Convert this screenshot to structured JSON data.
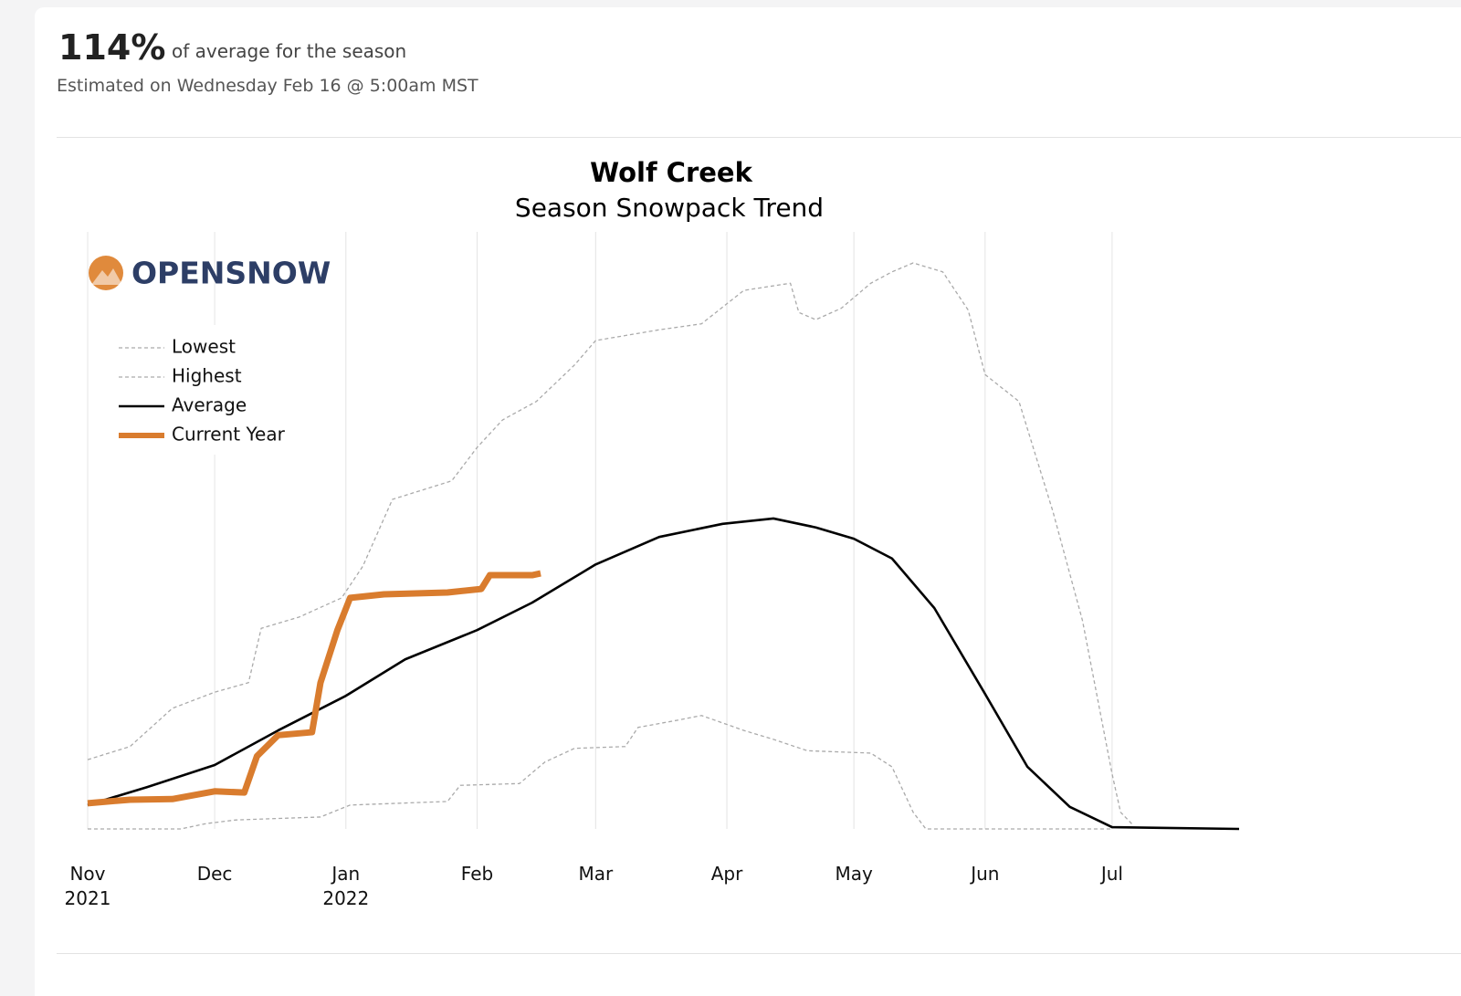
{
  "header": {
    "percent": "114%",
    "percent_caption": "of average for the season",
    "estimate": "Estimated on Wednesday Feb 16 @ 5:00am MST"
  },
  "logo": "OPENSNOW",
  "chart_data": {
    "type": "line",
    "title": "Wolf Creek",
    "subtitle": "Season Snowpack Trend",
    "xlim": [
      0,
      272
    ],
    "ylim": [
      0,
      100
    ],
    "xticks": [
      {
        "value": 0,
        "label": "Nov 2021"
      },
      {
        "value": 30,
        "label": "Dec"
      },
      {
        "value": 61,
        "label": "Jan 2022"
      },
      {
        "value": 92,
        "label": "Feb"
      },
      {
        "value": 120,
        "label": "Mar"
      },
      {
        "value": 151,
        "label": "Apr"
      },
      {
        "value": 181,
        "label": "May"
      },
      {
        "value": 212,
        "label": "Jun"
      },
      {
        "value": 242,
        "label": "Jul"
      }
    ],
    "grid": true,
    "legend": "upper left",
    "series": [
      {
        "name": "Lowest",
        "color": "#aaaaaa",
        "dash": true,
        "x": [
          0,
          22,
          28,
          35,
          55,
          62,
          85,
          88,
          102,
          108,
          115,
          127,
          130,
          140,
          145,
          155,
          162,
          170,
          185,
          190,
          195,
          198,
          242
        ],
        "values": [
          0,
          0,
          0.9,
          1.5,
          2.0,
          4.0,
          4.6,
          7.3,
          7.6,
          11.2,
          13.5,
          13.8,
          17.0,
          18.3,
          19.0,
          16.5,
          15.0,
          13.1,
          12.7,
          10.4,
          2.8,
          0,
          0
        ]
      },
      {
        "name": "Highest",
        "color": "#aaaaaa",
        "dash": true,
        "x": [
          0,
          10,
          20,
          30,
          38,
          41,
          50,
          60,
          65,
          72,
          86,
          92,
          98,
          106,
          115,
          120,
          135,
          145,
          155,
          166,
          168,
          172,
          178,
          185,
          190,
          195,
          202,
          208,
          212,
          220,
          228,
          235,
          242,
          244,
          247
        ],
        "values": [
          11.6,
          13.8,
          20.2,
          22.9,
          24.5,
          33.6,
          35.5,
          38.7,
          44.0,
          55.2,
          58.3,
          63.9,
          68.5,
          71.6,
          77.7,
          81.8,
          83.6,
          84.6,
          90.2,
          91.4,
          86.5,
          85.3,
          87.2,
          91.4,
          93.3,
          94.8,
          93.3,
          86.9,
          76.1,
          71.6,
          53.2,
          34.9,
          9.2,
          2.8,
          0.6
        ]
      },
      {
        "name": "Average",
        "color": "#000000",
        "dash": false,
        "x": [
          0,
          14,
          30,
          45,
          61,
          75,
          92,
          105,
          120,
          135,
          150,
          162,
          172,
          181,
          190,
          200,
          212,
          222,
          232,
          242,
          272
        ],
        "values": [
          4.0,
          7.0,
          10.7,
          16.5,
          22.3,
          28.4,
          33.3,
          37.9,
          44.3,
          48.9,
          51.1,
          52.0,
          50.5,
          48.6,
          45.3,
          37.0,
          22.6,
          10.4,
          3.7,
          0.3,
          0
        ]
      },
      {
        "name": "Current Year",
        "color": "#d97c2e",
        "dash": false,
        "x": [
          0,
          10,
          20,
          30,
          37,
          40,
          45,
          53,
          55,
          59,
          62,
          70,
          85,
          93,
          95,
          105,
          107
        ],
        "values": [
          4.3,
          4.9,
          5.0,
          6.3,
          6.1,
          12.2,
          15.7,
          16.2,
          24.5,
          33.3,
          38.7,
          39.3,
          39.6,
          40.2,
          42.5,
          42.5,
          42.8
        ]
      }
    ]
  }
}
